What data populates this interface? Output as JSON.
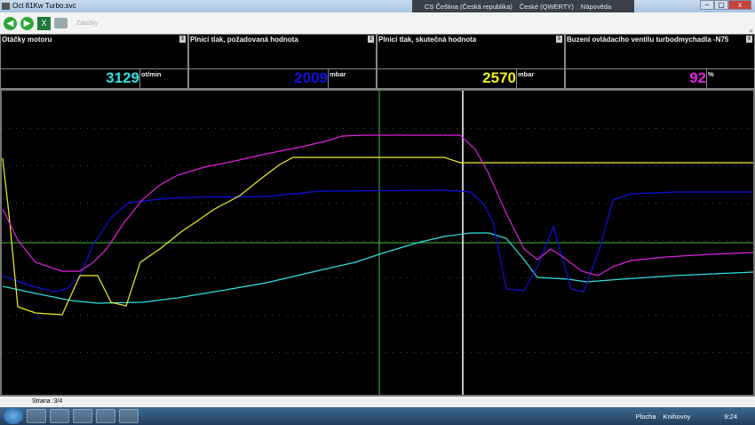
{
  "window": {
    "title": "Oct 81Kw Turbo.svc",
    "minimize": "–",
    "maximize": "▢",
    "close": "x"
  },
  "langbar": {
    "language": "CS Čeština (Česká republika)",
    "keyboard": "České (QWERTY)",
    "help": "Nápověda"
  },
  "toolbar": {
    "back_icon": "arrow-left-icon",
    "forward_icon": "arrow-right-icon",
    "excel_icon": "excel-icon",
    "print_icon": "printer-icon",
    "bookmarks_label": "Záložky",
    "collapse": "«"
  },
  "panels": [
    {
      "title": "Otáčky motoru",
      "value": "3129",
      "unit": "ot/min",
      "color": "#2de0e0"
    },
    {
      "title": "Plnicí tlak, požadovaná hodnota",
      "value": "2009",
      "unit": "mbar",
      "color": "#1010e0"
    },
    {
      "title": "Plnicí tlak, skutečná hodnota",
      "value": "2570",
      "unit": "mbar",
      "color": "#f0f020"
    },
    {
      "title": "Buzení ovládacího ventilu turbodmychadla -N75",
      "value": "92",
      "unit": "%",
      "color": "#e020e0"
    }
  ],
  "chart": {
    "grid": true,
    "cursor_colors": {
      "green": "#40c040",
      "white": "#ffffff"
    }
  },
  "status": {
    "page": "Strana :3/4"
  },
  "taskbar": {
    "desktop": "Plocha",
    "libraries": "Knihovny",
    "clock": "9:24"
  }
}
